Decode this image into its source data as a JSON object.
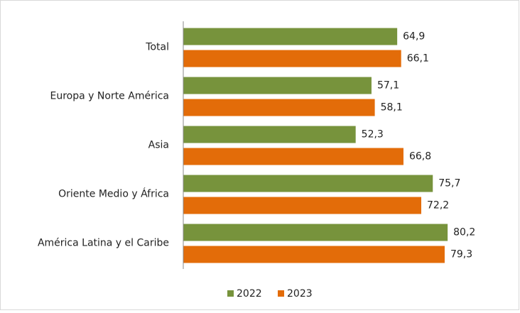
{
  "chart_data": {
    "type": "bar",
    "orientation": "horizontal",
    "categories": [
      "Total",
      "Europa y Norte América",
      "Asia",
      "Oriente Medio y África",
      "América Latina y el Caribe"
    ],
    "series": [
      {
        "name": "2022",
        "color": "#77933c",
        "values": [
          64.9,
          57.1,
          52.3,
          75.7,
          80.2
        ],
        "value_labels": [
          "64,9",
          "57,1",
          "52,3",
          "75,7",
          "80,2"
        ]
      },
      {
        "name": "2023",
        "color": "#e36c09",
        "values": [
          66.1,
          58.1,
          66.8,
          72.2,
          79.3
        ],
        "value_labels": [
          "66,1",
          "58,1",
          "66,8",
          "72,2",
          "79,3"
        ]
      }
    ],
    "legend": "bottom"
  }
}
